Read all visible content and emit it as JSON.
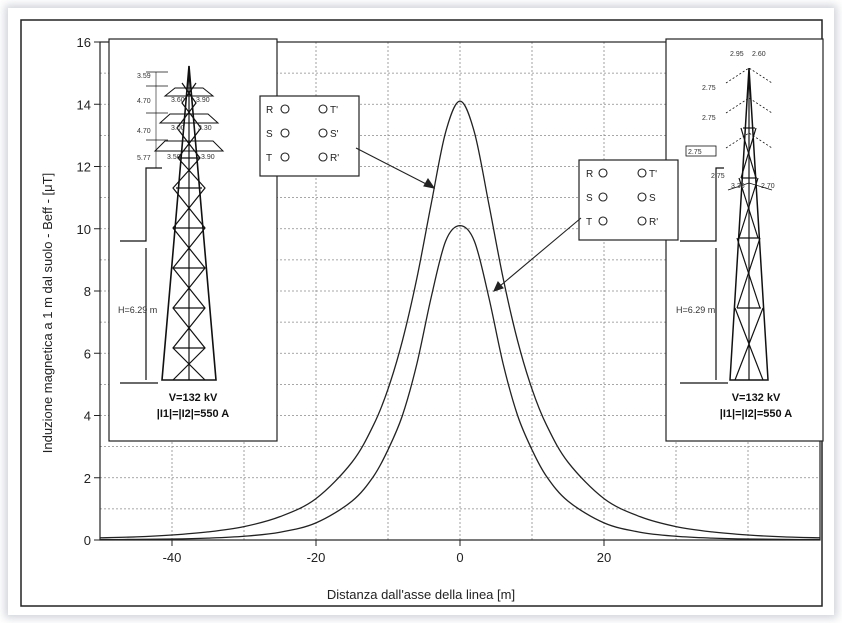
{
  "chart_data": {
    "type": "line",
    "title": "",
    "xlabel": "Distanza dall'asse della linea [m]",
    "ylabel": "Induzione magnetica a 1 m dal suolo - Beff - [μT]",
    "xlim": [
      -50,
      50
    ],
    "ylim": [
      0,
      16
    ],
    "xticks": [
      -40,
      -20,
      0,
      20
    ],
    "yticks": [
      0,
      2,
      4,
      6,
      8,
      10,
      12,
      14,
      16
    ],
    "grid": true,
    "series": [
      {
        "x": [
          -50,
          -45,
          -40,
          -35,
          -30,
          -25,
          -20,
          -15,
          -12,
          -10,
          -8,
          -6,
          -4,
          -2,
          0,
          2,
          4,
          6,
          8,
          10,
          12,
          15,
          20,
          25,
          30,
          35,
          40,
          45,
          50
        ],
        "y": [
          0.07,
          0.1,
          0.16,
          0.26,
          0.43,
          0.75,
          1.33,
          2.5,
          3.7,
          4.85,
          6.4,
          8.4,
          10.8,
          13.1,
          14.1,
          13.1,
          10.8,
          8.4,
          6.4,
          4.85,
          3.7,
          2.5,
          1.33,
          0.75,
          0.43,
          0.26,
          0.16,
          0.1,
          0.07
        ]
      },
      {
        "x": [
          -50,
          -45,
          -40,
          -35,
          -30,
          -25,
          -20,
          -15,
          -12,
          -10,
          -8,
          -6,
          -4,
          -2,
          0,
          2,
          4,
          6,
          8,
          10,
          12,
          15,
          20,
          25,
          30,
          35,
          40,
          45,
          50
        ],
        "y": [
          0.01,
          0.02,
          0.03,
          0.06,
          0.12,
          0.25,
          0.55,
          1.25,
          2.05,
          2.9,
          4.0,
          5.65,
          7.8,
          9.6,
          10.1,
          9.6,
          7.8,
          5.65,
          4.0,
          2.9,
          2.05,
          1.25,
          0.55,
          0.25,
          0.12,
          0.06,
          0.03,
          0.02,
          0.01
        ]
      }
    ],
    "annotations": {
      "legend_left": {
        "rows": [
          [
            "R",
            "T'"
          ],
          [
            "S",
            "S'"
          ],
          [
            "T",
            "R'"
          ]
        ]
      },
      "legend_right": {
        "rows": [
          [
            "R",
            "T'"
          ],
          [
            "S",
            "S"
          ],
          [
            "T",
            "R'"
          ]
        ]
      },
      "tower_left": {
        "voltage": "V=132 kV",
        "current": "|I1|=|I2|=550 A",
        "height": "H=6.29 m",
        "dims": [
          "3.59",
          "4.70",
          "4.70",
          "5.77",
          "3.60",
          "3.90",
          "3.00",
          "3.30",
          "3.50",
          "3.90"
        ]
      },
      "tower_right": {
        "voltage": "V=132 kV",
        "current": "|I1|=|I2|=550 A",
        "height": "H=6.29 m",
        "dims": [
          "2.95",
          "2.60",
          "2.75",
          "2.75",
          "2.75",
          "2.75",
          "3.36",
          "2.70"
        ]
      }
    }
  }
}
